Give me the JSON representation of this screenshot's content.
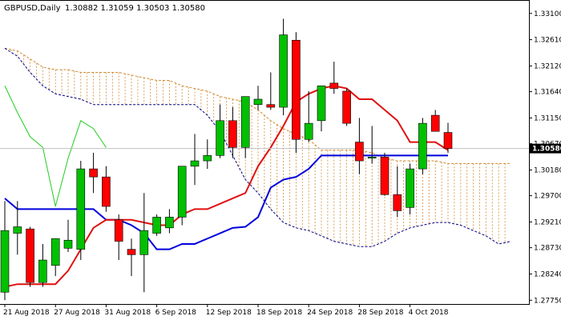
{
  "header": {
    "symbol": "GBPUSD,Daily",
    "ohlc": "1.30882 1.31059 1.30503 1.30580"
  },
  "current_price_label": "1.30580",
  "colors": {
    "bull": "#00c000",
    "bear": "#ff0000",
    "wick": "#000000",
    "tenkan": "#e01010",
    "kijun": "#0000dd",
    "chikou": "#22cc22",
    "kumo": "#d08a30",
    "price_tag_bg": "#000000",
    "price_line": "#c0c0c0"
  },
  "chart_data": {
    "type": "candlestick",
    "instrument": "GBPUSD",
    "timeframe": "Daily",
    "ylim": [
      1.2768,
      1.3335
    ],
    "y_ticks": [
      "1.33100",
      "1.32610",
      "1.32120",
      "1.31640",
      "1.31150",
      "1.30670",
      "1.30180",
      "1.29700",
      "1.29210",
      "1.28730",
      "1.28240",
      "1.27750"
    ],
    "x_ticks": [
      {
        "label": "21 Aug 2018",
        "bar": 0
      },
      {
        "label": "27 Aug 2018",
        "bar": 4
      },
      {
        "label": "31 Aug 2018",
        "bar": 8
      },
      {
        "label": "6 Sep 2018",
        "bar": 12
      },
      {
        "label": "12 Sep 2018",
        "bar": 16
      },
      {
        "label": "18 Sep 2018",
        "bar": 20
      },
      {
        "label": "24 Sep 2018",
        "bar": 24
      },
      {
        "label": "28 Sep 2018",
        "bar": 28
      },
      {
        "label": "4 Oct 2018",
        "bar": 32
      }
    ],
    "candles": [
      {
        "o": 1.279,
        "h": 1.296,
        "l": 1.2775,
        "c": 1.2905
      },
      {
        "o": 1.29,
        "h": 1.296,
        "l": 1.286,
        "c": 1.2912
      },
      {
        "o": 1.2908,
        "h": 1.2912,
        "l": 1.28,
        "c": 1.2808
      },
      {
        "o": 1.2808,
        "h": 1.288,
        "l": 1.28,
        "c": 1.285
      },
      {
        "o": 1.284,
        "h": 1.289,
        "l": 1.282,
        "c": 1.289
      },
      {
        "o": 1.2872,
        "h": 1.2925,
        "l": 1.2865,
        "c": 1.2887
      },
      {
        "o": 1.287,
        "h": 1.3035,
        "l": 1.285,
        "c": 1.302
      },
      {
        "o": 1.302,
        "h": 1.305,
        "l": 1.2975,
        "c": 1.3005
      },
      {
        "o": 1.3005,
        "h": 1.3025,
        "l": 1.294,
        "c": 1.295
      },
      {
        "o": 1.2925,
        "h": 1.2935,
        "l": 1.285,
        "c": 1.2885
      },
      {
        "o": 1.287,
        "h": 1.289,
        "l": 1.282,
        "c": 1.286
      },
      {
        "o": 1.286,
        "h": 1.2975,
        "l": 1.279,
        "c": 1.2905
      },
      {
        "o": 1.29,
        "h": 1.2935,
        "l": 1.2895,
        "c": 1.293
      },
      {
        "o": 1.291,
        "h": 1.2945,
        "l": 1.29,
        "c": 1.293
      },
      {
        "o": 1.293,
        "h": 1.3025,
        "l": 1.2915,
        "c": 1.3025
      },
      {
        "o": 1.3025,
        "h": 1.3085,
        "l": 1.299,
        "c": 1.3035
      },
      {
        "o": 1.3035,
        "h": 1.3075,
        "l": 1.302,
        "c": 1.3045
      },
      {
        "o": 1.3045,
        "h": 1.314,
        "l": 1.304,
        "c": 1.311
      },
      {
        "o": 1.311,
        "h": 1.3135,
        "l": 1.304,
        "c": 1.306
      },
      {
        "o": 1.306,
        "h": 1.3155,
        "l": 1.304,
        "c": 1.3155
      },
      {
        "o": 1.314,
        "h": 1.3175,
        "l": 1.313,
        "c": 1.315
      },
      {
        "o": 1.314,
        "h": 1.32,
        "l": 1.313,
        "c": 1.3135
      },
      {
        "o": 1.3135,
        "h": 1.33,
        "l": 1.312,
        "c": 1.327
      },
      {
        "o": 1.326,
        "h": 1.3275,
        "l": 1.305,
        "c": 1.3075
      },
      {
        "o": 1.3075,
        "h": 1.3165,
        "l": 1.307,
        "c": 1.3105
      },
      {
        "o": 1.311,
        "h": 1.3175,
        "l": 1.309,
        "c": 1.3175
      },
      {
        "o": 1.318,
        "h": 1.322,
        "l": 1.316,
        "c": 1.317
      },
      {
        "o": 1.3165,
        "h": 1.317,
        "l": 1.31,
        "c": 1.3105
      },
      {
        "o": 1.307,
        "h": 1.3115,
        "l": 1.301,
        "c": 1.3035
      },
      {
        "o": 1.304,
        "h": 1.31,
        "l": 1.303,
        "c": 1.3042
      },
      {
        "o": 1.3042,
        "h": 1.305,
        "l": 1.297,
        "c": 1.2972
      },
      {
        "o": 1.2972,
        "h": 1.3025,
        "l": 1.293,
        "c": 1.2942
      },
      {
        "o": 1.2948,
        "h": 1.303,
        "l": 1.2935,
        "c": 1.302
      },
      {
        "o": 1.302,
        "h": 1.3115,
        "l": 1.301,
        "c": 1.3105
      },
      {
        "o": 1.312,
        "h": 1.313,
        "l": 1.309,
        "c": 1.309
      },
      {
        "o": 1.3088,
        "h": 1.3106,
        "l": 1.305,
        "c": 1.3058
      }
    ],
    "tenkan": {
      "start": 0,
      "values": [
        1.28,
        1.2805,
        1.2805,
        1.2805,
        1.2805,
        1.283,
        1.287,
        1.291,
        1.2925,
        1.2925,
        1.2925,
        1.292,
        1.2915,
        1.2915,
        1.2935,
        1.2945,
        1.2945,
        1.2955,
        1.2965,
        1.2975,
        1.3025,
        1.306,
        1.31,
        1.3145,
        1.316,
        1.317,
        1.3175,
        1.317,
        1.315,
        1.315,
        1.313,
        1.311,
        1.307,
        1.307,
        1.307,
        1.3055
      ]
    },
    "kijun": {
      "start": 0,
      "values": [
        1.2965,
        1.2945,
        1.2945,
        1.2945,
        1.2945,
        1.2945,
        1.2945,
        1.2945,
        1.2925,
        1.2925,
        1.2915,
        1.29,
        1.287,
        1.287,
        1.288,
        1.288,
        1.289,
        1.29,
        1.291,
        1.2912,
        1.293,
        1.2985,
        1.3,
        1.3005,
        1.302,
        1.3045,
        1.3045,
        1.3045,
        1.3045,
        1.3045,
        1.3045,
        1.3045,
        1.3045,
        1.3045,
        1.3045,
        1.3045
      ]
    },
    "chikou": {
      "start": 0,
      "values": [
        1.3175,
        1.3125,
        1.308,
        1.306,
        1.295,
        1.304,
        1.311,
        1.3095,
        1.306
      ]
    },
    "kumo": {
      "start": 0,
      "upper": [
        1.3245,
        1.324,
        1.3225,
        1.321,
        1.3205,
        1.3205,
        1.32,
        1.32,
        1.32,
        1.32,
        1.3195,
        1.319,
        1.3185,
        1.3185,
        1.3175,
        1.317,
        1.3165,
        1.3155,
        1.315,
        1.3145,
        1.313,
        1.311,
        1.3095,
        1.3085,
        1.3075,
        1.3055,
        1.3055,
        1.3055,
        1.3055,
        1.305,
        1.304,
        1.3035,
        1.3035,
        1.3035,
        1.3035,
        1.303,
        1.303,
        1.303,
        1.303,
        1.303,
        1.303
      ],
      "lower": [
        1.3245,
        1.323,
        1.32,
        1.3175,
        1.316,
        1.3155,
        1.315,
        1.314,
        1.314,
        1.314,
        1.314,
        1.314,
        1.314,
        1.314,
        1.314,
        1.314,
        1.312,
        1.309,
        1.3045,
        1.3,
        1.2975,
        1.2945,
        1.292,
        1.291,
        1.2905,
        1.2895,
        1.2885,
        1.288,
        1.2875,
        1.2875,
        1.2885,
        1.29,
        1.291,
        1.2915,
        1.292,
        1.292,
        1.2915,
        1.2905,
        1.2895,
        1.288,
        1.2885
      ]
    },
    "last_price": 1.3058
  }
}
